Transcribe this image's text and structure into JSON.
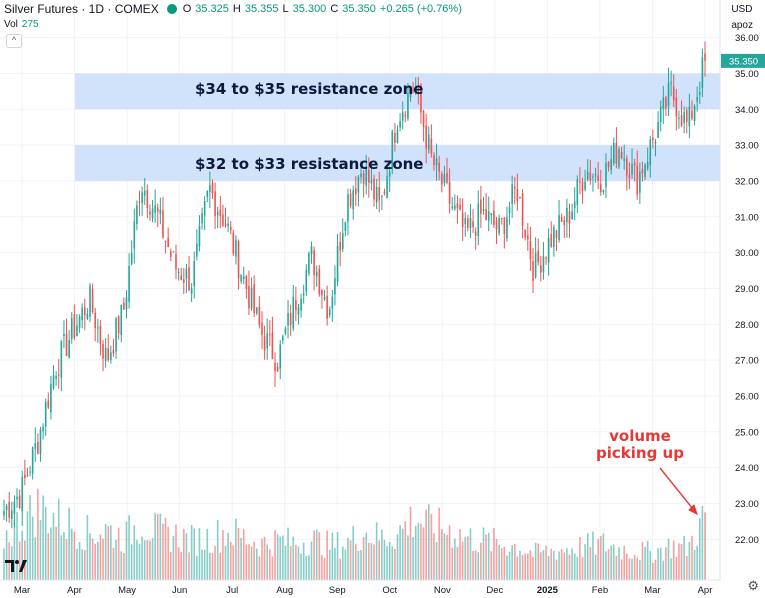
{
  "header": {
    "symbol": "Silver Futures · 1D · COMEX",
    "open_label": "O",
    "open": "35.325",
    "high_label": "H",
    "high": "35.355",
    "low_label": "L",
    "low": "35.300",
    "close_label": "C",
    "close": "35.350",
    "change": "+0.265 (+0.76%)",
    "vol_label": "Vol",
    "vol_value": "275",
    "collapse_glyph": "^"
  },
  "currency": "USD",
  "unit": "apoz",
  "annotations": {
    "zone_upper": "$34 to $35 resistance zone",
    "zone_lower": "$32 to $33 resistance zone",
    "volume_note_line1": "volume",
    "volume_note_line2": "picking up"
  },
  "colors": {
    "up": "#26a69a",
    "down": "#ef5350",
    "zone": "#cfe0fb",
    "annotation": "#e53935"
  },
  "icons": {
    "logo": "tradingview-logo-icon",
    "settings": "gear-icon"
  },
  "settings_glyph": "⚙",
  "chart_data": {
    "type": "candlestick",
    "y_ticks": [
      "22.00",
      "23.00",
      "24.00",
      "25.00",
      "26.00",
      "27.00",
      "28.00",
      "29.00",
      "30.00",
      "31.00",
      "32.00",
      "33.00",
      "34.00",
      "35.00",
      "36.00"
    ],
    "ylim": [
      21.2,
      36.1
    ],
    "x_ticks": [
      "Mar",
      "Apr",
      "May",
      "Jun",
      "Jul",
      "Aug",
      "Sep",
      "Oct",
      "Nov",
      "Dec",
      "2025",
      "Feb",
      "Mar",
      "Apr"
    ],
    "grid": true,
    "resistance_zones": [
      {
        "low": 34,
        "high": 35,
        "label": "$34 to $35 resistance zone"
      },
      {
        "low": 32,
        "high": 33,
        "label": "$32 to $33 resistance zone"
      }
    ],
    "last_price": 35.35,
    "close_path": [
      [
        "Mar",
        22.8
      ],
      [
        "Mar",
        23.3
      ],
      [
        "Apr",
        24.8
      ],
      [
        "Apr",
        26.8
      ],
      [
        "Apr",
        27.8
      ],
      [
        "May",
        28.7
      ],
      [
        "May",
        27.0
      ],
      [
        "May",
        28.4
      ],
      [
        "May",
        32.0
      ],
      [
        "Jun",
        31.0
      ],
      [
        "Jun",
        29.6
      ],
      [
        "Jun",
        29.2
      ],
      [
        "Jul",
        31.8
      ],
      [
        "Jul",
        30.8
      ],
      [
        "Jul",
        29.3
      ],
      [
        "Aug",
        27.8
      ],
      [
        "Aug",
        27.0
      ],
      [
        "Aug",
        28.6
      ],
      [
        "Sep",
        29.9
      ],
      [
        "Sep",
        28.4
      ],
      [
        "Sep",
        31.4
      ],
      [
        "Oct",
        32.4
      ],
      [
        "Oct",
        31.2
      ],
      [
        "Oct",
        33.8
      ],
      [
        "Oct",
        34.7
      ],
      [
        "Nov",
        32.6
      ],
      [
        "Nov",
        31.5
      ],
      [
        "Nov",
        30.5
      ],
      [
        "Dec",
        31.1
      ],
      [
        "Dec",
        30.6
      ],
      [
        "Dec",
        31.8
      ],
      [
        "2025",
        29.5
      ],
      [
        "2025",
        30.4
      ],
      [
        "2025",
        31.0
      ],
      [
        "Feb",
        32.3
      ],
      [
        "Feb",
        32.1
      ],
      [
        "Feb",
        33.0
      ],
      [
        "Mar",
        32.0
      ],
      [
        "Mar",
        33.2
      ],
      [
        "Mar",
        34.5
      ],
      [
        "Mar",
        33.5
      ],
      [
        "Apr",
        35.35
      ]
    ],
    "volume_ylim": [
      0,
      100
    ],
    "volume_profile": [
      35,
      48,
      60,
      52,
      45,
      38,
      42,
      35,
      48,
      40,
      37,
      33,
      35,
      40,
      36,
      30,
      33,
      31,
      34,
      29,
      30,
      40,
      35,
      38,
      52,
      44,
      42,
      35,
      33,
      30,
      28,
      22,
      24,
      26,
      28,
      30,
      26,
      24,
      23,
      28,
      27,
      52
    ]
  }
}
